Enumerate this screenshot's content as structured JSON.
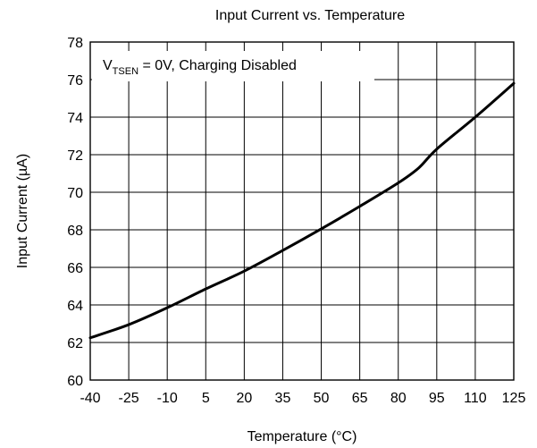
{
  "chart_data": {
    "type": "line",
    "title": "Input Current vs. Temperature",
    "xlabel": "Temperature (°C)",
    "ylabel": "Input Current (µA)",
    "annotation": {
      "var": "V",
      "sub": "TSEN",
      "rest": " = 0V, Charging Disabled"
    },
    "xlim": [
      -40,
      125
    ],
    "ylim": [
      60,
      78
    ],
    "xticks": [
      -40,
      -25,
      -10,
      5,
      20,
      35,
      50,
      65,
      80,
      95,
      110,
      125
    ],
    "yticks": [
      60,
      62,
      64,
      66,
      68,
      70,
      72,
      74,
      76,
      78
    ],
    "grid": true,
    "series": [
      {
        "color": "#000000",
        "x": [
          -40,
          -25,
          -10,
          5,
          20,
          35,
          50,
          65,
          80,
          88,
          95,
          110,
          125
        ],
        "y": [
          62.25,
          62.95,
          63.85,
          64.85,
          65.8,
          66.9,
          68.05,
          69.25,
          70.5,
          71.3,
          72.3,
          74.0,
          75.8
        ]
      }
    ]
  }
}
